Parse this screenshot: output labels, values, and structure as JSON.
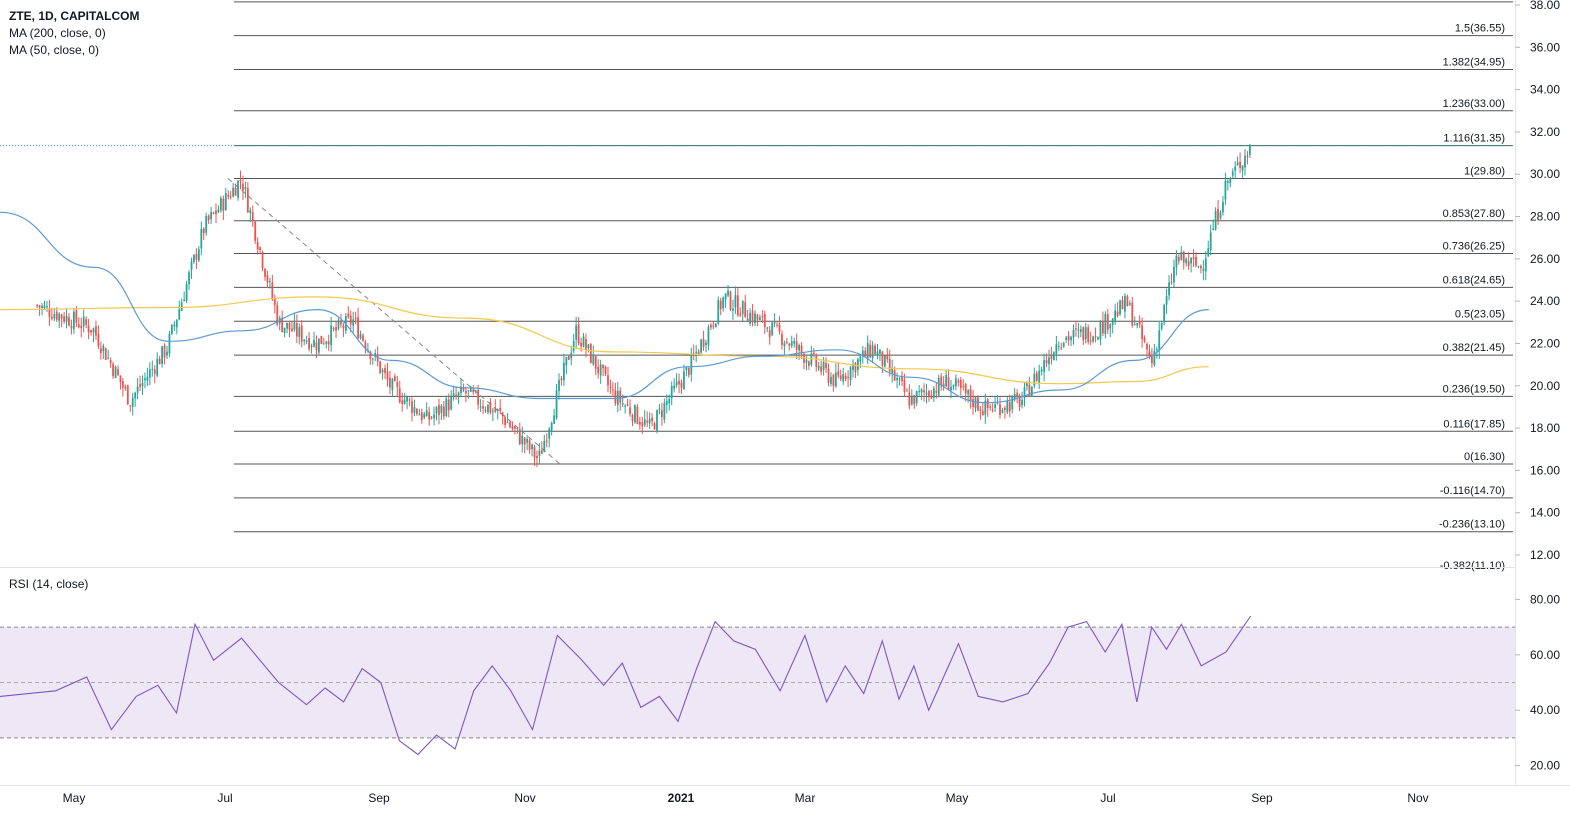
{
  "legend": {
    "symbol_line": "ZTE, 1D, CAPITALCOM",
    "ma200": "MA (200, close, 0)",
    "ma50": "MA (50, close, 0)",
    "rsi": "RSI (14, close)"
  },
  "colors": {
    "bull": "#26a69a",
    "bear": "#ef5350",
    "ma200": "#f2c94c",
    "ma50": "#5b9bd5",
    "rsi": "#7e57c2",
    "rsi_band": "#ede7f6",
    "fib_line": "#555555",
    "trend_line": "#888888"
  },
  "chart_data": [
    {
      "type": "candlestick",
      "symbol": "ZTE",
      "interval": "1D",
      "source": "CAPITALCOM",
      "x_labels": [
        "May",
        "Jul",
        "Sep",
        "Nov",
        "2021",
        "Mar",
        "May",
        "Jul",
        "Sep",
        "Nov"
      ],
      "y_ticks": [
        "12.00",
        "14.00",
        "16.00",
        "18.00",
        "20.00",
        "22.00",
        "24.00",
        "26.00",
        "28.00",
        "30.00",
        "32.00",
        "34.00",
        "36.00",
        "38.00"
      ],
      "ylim": [
        11.3,
        38.1
      ],
      "grid": false,
      "fib_levels": [
        {
          "label": "1.5(36.55)",
          "value": 36.55
        },
        {
          "label": "1.382(34.95)",
          "value": 34.95
        },
        {
          "label": "1.236(33.00)",
          "value": 33.0
        },
        {
          "label": "1.116(31.35)",
          "value": 31.35
        },
        {
          "label": "1(29.80)",
          "value": 29.8
        },
        {
          "label": "0.853(27.80)",
          "value": 27.8
        },
        {
          "label": "0.736(26.25)",
          "value": 26.25
        },
        {
          "label": "0.618(24.65)",
          "value": 24.65
        },
        {
          "label": "0.5(23.05)",
          "value": 23.05
        },
        {
          "label": "0.382(21.45)",
          "value": 21.45
        },
        {
          "label": "0.236(19.50)",
          "value": 19.5
        },
        {
          "label": "0.116(17.85)",
          "value": 17.85
        },
        {
          "label": "0(16.30)",
          "value": 16.3
        },
        {
          "label": "-0.116(14.70)",
          "value": 14.7
        },
        {
          "label": "-0.236(13.10)",
          "value": 13.1
        },
        {
          "label": "-0.382(11.10)",
          "value": 11.1
        }
      ],
      "fib_top_value": 38.15,
      "current_price": 31.35,
      "trend_line": {
        "from": [
          "Jul 2020",
          29.8
        ],
        "to": [
          "Nov 2020",
          16.3
        ]
      },
      "price_path": [
        [
          "Apr 2020",
          23.8
        ],
        [
          "May 2020",
          22.7
        ],
        [
          "May 2020",
          19.3
        ],
        [
          "Jun 2020",
          21.8
        ],
        [
          "Jun 2020",
          27.5
        ],
        [
          "Jul 2020",
          29.8
        ],
        [
          "Jul 2020",
          23.0
        ],
        [
          "Aug 2020",
          22.0
        ],
        [
          "Aug 2020",
          23.1
        ],
        [
          "Sep 2020",
          20.0
        ],
        [
          "Sep 2020",
          18.4
        ],
        [
          "Oct 2020",
          19.7
        ],
        [
          "Oct 2020",
          18.6
        ],
        [
          "Nov 2020",
          16.5
        ],
        [
          "Nov 2020",
          22.6
        ],
        [
          "Dec 2020",
          19.6
        ],
        [
          "Dec 2020",
          18.0
        ],
        [
          "Jan 2021",
          20.7
        ],
        [
          "Jan 2021",
          24.2
        ],
        [
          "Feb 2021",
          22.4
        ],
        [
          "Mar 2021",
          20.2
        ],
        [
          "Mar 2021",
          21.8
        ],
        [
          "Apr 2021",
          19.3
        ],
        [
          "Apr 2021",
          20.2
        ],
        [
          "May 2021",
          18.9
        ],
        [
          "May 2021",
          19.3
        ],
        [
          "Jun 2021",
          22.2
        ],
        [
          "Jun 2021",
          22.6
        ],
        [
          "Jul 2021",
          23.9
        ],
        [
          "Jul 2021",
          21.1
        ],
        [
          "Jul 2021",
          26.0
        ],
        [
          "Aug 2021",
          25.6
        ],
        [
          "Aug 2021",
          29.5
        ],
        [
          "Aug 2021",
          31.3
        ]
      ],
      "series": [
        {
          "name": "MA (200, close, 0)",
          "points": [
            [
              "Apr 2020",
              23.6
            ],
            [
              "Jun 2020",
              23.7
            ],
            [
              "Aug 2020",
              24.2
            ],
            [
              "Oct 2020",
              23.2
            ],
            [
              "Dec 2020",
              21.6
            ],
            [
              "Feb 2021",
              21.4
            ],
            [
              "Apr 2021",
              20.8
            ],
            [
              "Jun 2021",
              20.1
            ],
            [
              "Jul 2021",
              20.2
            ],
            [
              "Aug 2021",
              20.9
            ]
          ]
        },
        {
          "name": "MA (50, close, 0)",
          "points": [
            [
              "Apr 2020",
              28.2
            ],
            [
              "May 2020",
              25.6
            ],
            [
              "Jun 2020",
              22.1
            ],
            [
              "Jul 2020",
              22.6
            ],
            [
              "Aug 2020",
              23.6
            ],
            [
              "Sep 2020",
              21.2
            ],
            [
              "Oct 2020",
              19.9
            ],
            [
              "Nov 2020",
              19.4
            ],
            [
              "Dec 2020",
              19.4
            ],
            [
              "Jan 2021",
              20.9
            ],
            [
              "Feb 2021",
              21.4
            ],
            [
              "Mar 2021",
              21.7
            ],
            [
              "Apr 2021",
              20.4
            ],
            [
              "May 2021",
              19.2
            ],
            [
              "Jun 2021",
              19.8
            ],
            [
              "Jul 2021",
              21.2
            ],
            [
              "Aug 2021",
              23.6
            ]
          ]
        }
      ]
    },
    {
      "type": "line",
      "title": "RSI (14, close)",
      "y_ticks": [
        "20.00",
        "40.00",
        "60.00",
        "80.00"
      ],
      "ylim": [
        13,
        87
      ],
      "band": [
        30,
        70
      ],
      "mid": 50,
      "series": [
        {
          "name": "RSI (14, close)",
          "points": [
            [
              "Apr 2020",
              45
            ],
            [
              "Apr 2020",
              47
            ],
            [
              "May 2020",
              52
            ],
            [
              "May 2020",
              33
            ],
            [
              "May 2020",
              45
            ],
            [
              "Jun 2020",
              49
            ],
            [
              "Jun 2020",
              39
            ],
            [
              "Jun 2020",
              71
            ],
            [
              "Jun 2020",
              58
            ],
            [
              "Jul 2020",
              66
            ],
            [
              "Jul 2020",
              50
            ],
            [
              "Aug 2020",
              42
            ],
            [
              "Aug 2020",
              48
            ],
            [
              "Aug 2020",
              43
            ],
            [
              "Aug 2020",
              55
            ],
            [
              "Sep 2020",
              50
            ],
            [
              "Sep 2020",
              29
            ],
            [
              "Sep 2020",
              24
            ],
            [
              "Sep 2020",
              31
            ],
            [
              "Oct 2020",
              26
            ],
            [
              "Oct 2020",
              47
            ],
            [
              "Oct 2020",
              56
            ],
            [
              "Oct 2020",
              47
            ],
            [
              "Nov 2020",
              33
            ],
            [
              "Nov 2020",
              67
            ],
            [
              "Nov 2020",
              58
            ],
            [
              "Dec 2020",
              49
            ],
            [
              "Dec 2020",
              57
            ],
            [
              "Dec 2020",
              41
            ],
            [
              "Dec 2020",
              45
            ],
            [
              "Jan 2021",
              36
            ],
            [
              "Jan 2021",
              55
            ],
            [
              "Jan 2021",
              72
            ],
            [
              "Jan 2021",
              65
            ],
            [
              "Feb 2021",
              62
            ],
            [
              "Feb 2021",
              47
            ],
            [
              "Feb 2021",
              67
            ],
            [
              "Mar 2021",
              43
            ],
            [
              "Mar 2021",
              56
            ],
            [
              "Mar 2021",
              46
            ],
            [
              "Mar 2021",
              65
            ],
            [
              "Apr 2021",
              44
            ],
            [
              "Apr 2021",
              56
            ],
            [
              "Apr 2021",
              40
            ],
            [
              "Apr 2021",
              52
            ],
            [
              "Apr 2021",
              64
            ],
            [
              "May 2021",
              45
            ],
            [
              "May 2021",
              43
            ],
            [
              "May 2021",
              46
            ],
            [
              "Jun 2021",
              57
            ],
            [
              "Jun 2021",
              70
            ],
            [
              "Jun 2021",
              72
            ],
            [
              "Jun 2021",
              61
            ],
            [
              "Jul 2021",
              71
            ],
            [
              "Jul 2021",
              43
            ],
            [
              "Jul 2021",
              70
            ],
            [
              "Jul 2021",
              62
            ],
            [
              "Jul 2021",
              71
            ],
            [
              "Aug 2021",
              56
            ],
            [
              "Aug 2021",
              61
            ],
            [
              "Aug 2021",
              74
            ]
          ]
        }
      ]
    }
  ]
}
